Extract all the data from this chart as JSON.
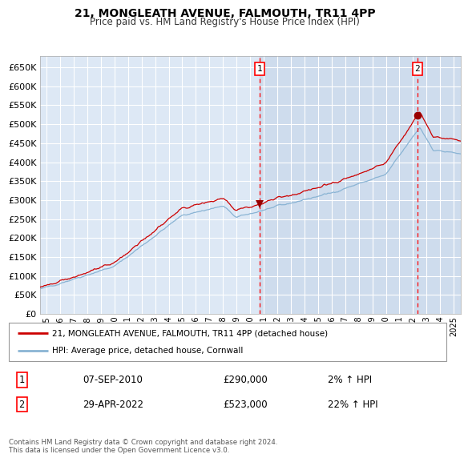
{
  "title": "21, MONGLEATH AVENUE, FALMOUTH, TR11 4PP",
  "subtitle": "Price paid vs. HM Land Registry's House Price Index (HPI)",
  "background_color": "#ffffff",
  "plot_bg_color": "#dde8f5",
  "grid_color": "#ffffff",
  "hpi_color": "#8ab4d4",
  "price_color": "#cc0000",
  "ylim": [
    0,
    680000
  ],
  "yticks": [
    0,
    50000,
    100000,
    150000,
    200000,
    250000,
    300000,
    350000,
    400000,
    450000,
    500000,
    550000,
    600000,
    650000
  ],
  "sale1_date": 2010.68,
  "sale1_price": 290000,
  "sale2_date": 2022.33,
  "sale2_price": 523000,
  "legend_line1": "21, MONGLEATH AVENUE, FALMOUTH, TR11 4PP (detached house)",
  "legend_line2": "HPI: Average price, detached house, Cornwall",
  "annotation1_date": "07-SEP-2010",
  "annotation1_price": "£290,000",
  "annotation1_hpi": "2% ↑ HPI",
  "annotation2_date": "29-APR-2022",
  "annotation2_price": "£523,000",
  "annotation2_hpi": "22% ↑ HPI",
  "footer": "Contains HM Land Registry data © Crown copyright and database right 2024.\nThis data is licensed under the Open Government Licence v3.0.",
  "xstart": 1994.5,
  "xend": 2025.5
}
